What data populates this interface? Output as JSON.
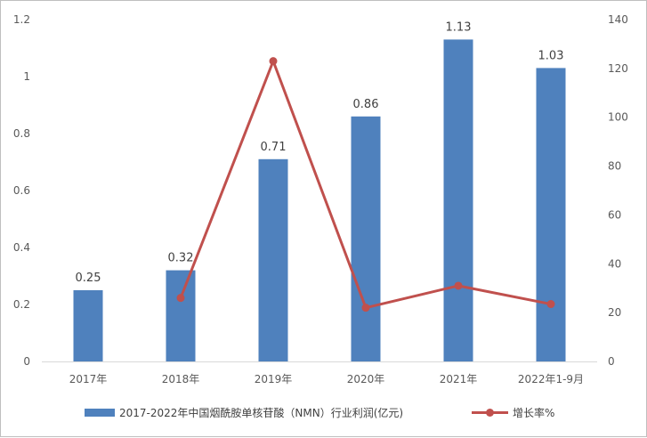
{
  "chart_data": {
    "type": "bar",
    "categories": [
      "2017年",
      "2018年",
      "2019年",
      "2020年",
      "2021年",
      "2022年1-9月"
    ],
    "series": [
      {
        "name": "2017-2022年中国烟酰胺单核苷酸（NMN）行业利润(亿元)",
        "type": "bar",
        "axis": "left",
        "color": "#4f81bd",
        "values": [
          0.25,
          0.32,
          0.71,
          0.86,
          1.13,
          1.03
        ],
        "labels": [
          "0.25",
          "0.32",
          "0.71",
          "0.86",
          "1.13",
          "1.03"
        ]
      },
      {
        "name": "增长率%",
        "type": "line",
        "axis": "right",
        "color": "#c0504d",
        "values": [
          null,
          26,
          123,
          22,
          31,
          23.5
        ]
      }
    ],
    "y_left": {
      "min": 0,
      "max": 1.2,
      "ticks": [
        "0",
        "0.2",
        "0.4",
        "0.6",
        "0.8",
        "1",
        "1.2"
      ]
    },
    "y_right": {
      "min": 0,
      "max": 140,
      "ticks": [
        "0",
        "20",
        "40",
        "60",
        "80",
        "100",
        "120",
        "140"
      ]
    },
    "grid": false,
    "legend_position": "bottom"
  }
}
